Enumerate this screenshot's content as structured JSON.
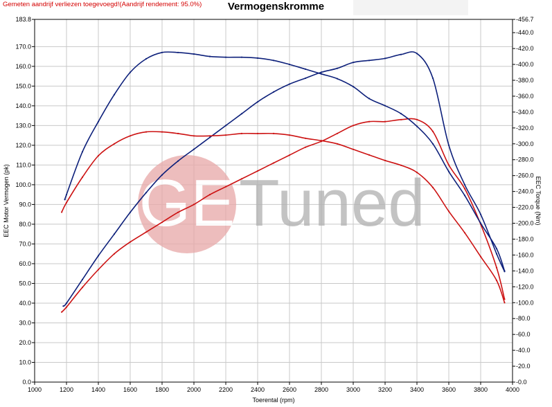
{
  "header": {
    "note": "Gemeten aandrijf verliezen toegevoegd!(Aandrijf rendement: 95.0%)",
    "title": "Vermogenskromme"
  },
  "watermark": {
    "text_left": "GE",
    "text_right": "Tuned"
  },
  "colors": {
    "tuned": "#0c1f7a",
    "stock": "#cc1111",
    "watermark_circle": "#e8a8a8",
    "watermark_text": "#b0b0b0",
    "grid": "#c8c8c8"
  },
  "chart_data": {
    "type": "line",
    "title": "Vermogenskromme",
    "xlabel": "Toerental (rpm)",
    "ylabel": "EEC Motor Vermogen (pk)",
    "y2label": "EEC Torque (Nm)",
    "xlim": [
      1000,
      4000
    ],
    "ylim": [
      0,
      183.8
    ],
    "y2lim": [
      0,
      456.7
    ],
    "grid": true,
    "x_ticks": [
      "1000",
      "1200",
      "1400",
      "1600",
      "1800",
      "2000",
      "2200",
      "2400",
      "2600",
      "2800",
      "3000",
      "3200",
      "3400",
      "3600",
      "3800",
      "4000"
    ],
    "y_ticks": [
      {
        "v": 0,
        "label": "0.0"
      },
      {
        "v": 10,
        "label": "10.0"
      },
      {
        "v": 20,
        "label": "20.0"
      },
      {
        "v": 30,
        "label": "30.0"
      },
      {
        "v": 40,
        "label": "40.0"
      },
      {
        "v": 50,
        "label": "50.0"
      },
      {
        "v": 60,
        "label": "60.0"
      },
      {
        "v": 70,
        "label": "70.0"
      },
      {
        "v": 80,
        "label": "80.0"
      },
      {
        "v": 90,
        "label": "90.0"
      },
      {
        "v": 100,
        "label": "100.0"
      },
      {
        "v": 110,
        "label": "110.0"
      },
      {
        "v": 120,
        "label": "120.0"
      },
      {
        "v": 130,
        "label": "130.0"
      },
      {
        "v": 140,
        "label": "140.0"
      },
      {
        "v": 150,
        "label": "150.0"
      },
      {
        "v": 160,
        "label": "160.0"
      },
      {
        "v": 170,
        "label": "170.0"
      },
      {
        "v": 183.8,
        "label": "183.8"
      }
    ],
    "y2_ticks": [
      {
        "v": 0,
        "label": "0.0"
      },
      {
        "v": 20,
        "label": "20.0"
      },
      {
        "v": 40,
        "label": "40.0"
      },
      {
        "v": 60,
        "label": "60.0"
      },
      {
        "v": 80,
        "label": "80.0"
      },
      {
        "v": 100,
        "label": "100.0"
      },
      {
        "v": 120,
        "label": "120.0"
      },
      {
        "v": 140,
        "label": "140.0"
      },
      {
        "v": 160,
        "label": "160.0"
      },
      {
        "v": 180,
        "label": "180.0"
      },
      {
        "v": 200,
        "label": "200.0"
      },
      {
        "v": 220,
        "label": "220.0"
      },
      {
        "v": 240,
        "label": "240.0"
      },
      {
        "v": 260,
        "label": "260.0"
      },
      {
        "v": 280,
        "label": "280.0"
      },
      {
        "v": 300,
        "label": "300.0"
      },
      {
        "v": 320,
        "label": "320.0"
      },
      {
        "v": 340,
        "label": "340.0"
      },
      {
        "v": 360,
        "label": "360.0"
      },
      {
        "v": 380,
        "label": "380.0"
      },
      {
        "v": 400,
        "label": "400.0"
      },
      {
        "v": 420,
        "label": "420.0"
      },
      {
        "v": 440,
        "label": "440.0"
      },
      {
        "v": 456.7,
        "label": "456.7"
      }
    ],
    "series": [
      {
        "key": "tuned-power",
        "axis": "left",
        "color": "#0c1f7a",
        "x": [
          1180,
          1200,
          1300,
          1400,
          1500,
          1600,
          1700,
          1800,
          1900,
          2000,
          2100,
          2200,
          2300,
          2400,
          2500,
          2600,
          2700,
          2800,
          2900,
          3000,
          3100,
          3200,
          3300,
          3400,
          3500,
          3600,
          3700,
          3800,
          3900,
          3950
        ],
        "y": [
          38.5,
          40,
          52,
          64,
          75,
          86,
          96,
          105,
          112,
          118,
          124,
          130,
          136,
          142,
          147,
          151,
          154,
          157,
          159,
          162,
          163,
          164,
          166,
          166.5,
          154,
          120,
          100,
          85,
          65,
          56
        ]
      },
      {
        "key": "stock-power",
        "axis": "left",
        "color": "#cc1111",
        "x": [
          1170,
          1200,
          1300,
          1400,
          1500,
          1600,
          1700,
          1800,
          1900,
          2000,
          2100,
          2200,
          2300,
          2400,
          2500,
          2600,
          2700,
          2800,
          2900,
          3000,
          3100,
          3200,
          3300,
          3400,
          3500,
          3600,
          3700,
          3800,
          3900,
          3950
        ],
        "y": [
          35.5,
          38,
          48,
          57,
          65,
          71,
          76,
          81,
          86,
          90,
          95,
          99,
          103,
          107,
          111,
          115,
          119,
          122,
          126,
          130,
          132,
          132,
          133,
          133,
          127,
          110,
          98,
          80,
          58,
          42
        ]
      },
      {
        "key": "tuned-torque",
        "axis": "right",
        "color": "#0c1f7a",
        "x": [
          1190,
          1200,
          1300,
          1400,
          1500,
          1600,
          1700,
          1800,
          1900,
          2000,
          2100,
          2200,
          2300,
          2400,
          2500,
          2600,
          2700,
          2800,
          2900,
          3000,
          3100,
          3200,
          3300,
          3400,
          3500,
          3600,
          3700,
          3800,
          3900,
          3950
        ],
        "y": [
          230,
          236,
          290,
          328,
          362,
          390,
          407,
          415,
          415,
          413,
          410,
          409,
          409,
          408,
          405,
          400,
          394,
          388,
          382,
          372,
          357,
          348,
          338,
          322,
          300,
          265,
          235,
          200,
          168,
          140
        ]
      },
      {
        "key": "stock-torque",
        "axis": "right",
        "color": "#cc1111",
        "x": [
          1170,
          1200,
          1300,
          1400,
          1500,
          1600,
          1700,
          1800,
          1900,
          2000,
          2100,
          2200,
          2300,
          2400,
          2500,
          2600,
          2700,
          2800,
          2900,
          3000,
          3100,
          3200,
          3300,
          3400,
          3500,
          3600,
          3700,
          3800,
          3900,
          3950
        ],
        "y": [
          214,
          226,
          258,
          285,
          300,
          310,
          315,
          315,
          313,
          310,
          310,
          311,
          313,
          313,
          313,
          311,
          307,
          304,
          300,
          293,
          286,
          279,
          273,
          264,
          245,
          215,
          188,
          158,
          128,
          100
        ]
      }
    ]
  }
}
